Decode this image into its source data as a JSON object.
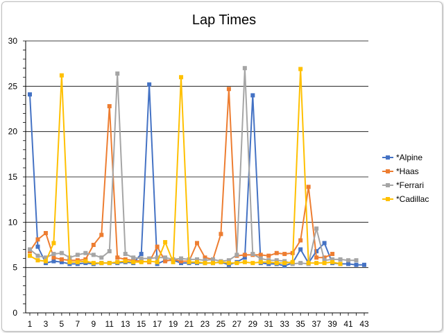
{
  "chart_data": {
    "type": "line",
    "title": "Lap Times",
    "xlabel": "",
    "ylabel": "",
    "ylim": [
      0,
      30
    ],
    "yticks": [
      0,
      5,
      10,
      15,
      20,
      25,
      30
    ],
    "xlim": [
      1,
      43
    ],
    "xticks": [
      1,
      3,
      5,
      7,
      9,
      11,
      13,
      15,
      17,
      19,
      21,
      23,
      25,
      27,
      29,
      31,
      33,
      35,
      37,
      39,
      41,
      43
    ],
    "grid": true,
    "legend": "right",
    "series": [
      {
        "name": "*Alpine",
        "color": "#4472c4",
        "marker": "diamond",
        "x": [
          1,
          2,
          3,
          4,
          5,
          6,
          7,
          8,
          9,
          10,
          11,
          12,
          13,
          14,
          15,
          16,
          17,
          18,
          19,
          20,
          21,
          22,
          23,
          24,
          25,
          26,
          27,
          28,
          29,
          30,
          31,
          32,
          33,
          34,
          35,
          36,
          37,
          38,
          39,
          40,
          41,
          42,
          43
        ],
        "values": [
          24.1,
          7.3,
          5.5,
          5.7,
          5.6,
          5.4,
          5.4,
          5.5,
          5.4,
          5.5,
          5.5,
          5.5,
          5.6,
          5.5,
          6.5,
          25.2,
          5.4,
          5.8,
          5.8,
          5.5,
          5.5,
          5.5,
          5.5,
          5.5,
          5.6,
          5.3,
          5.6,
          6.1,
          24.0,
          5.5,
          5.4,
          5.4,
          5.2,
          5.5,
          7.0,
          5.5,
          6.8,
          7.7,
          5.5,
          5.4,
          5.4,
          5.3,
          5.3
        ]
      },
      {
        "name": "*Haas",
        "color": "#ed7d31",
        "marker": "square",
        "x": [
          1,
          2,
          3,
          4,
          5,
          6,
          7,
          8,
          9,
          10,
          11,
          12,
          13,
          14,
          15,
          16,
          17,
          18,
          19,
          20,
          21,
          22,
          23,
          24,
          25,
          26,
          27,
          28,
          29,
          30,
          31,
          32,
          33,
          34,
          35,
          36,
          37,
          38,
          39
        ],
        "values": [
          6.8,
          8.1,
          8.8,
          6.1,
          5.9,
          5.8,
          5.8,
          5.9,
          7.5,
          8.6,
          22.8,
          6.1,
          5.9,
          5.8,
          5.7,
          5.6,
          7.3,
          5.7,
          5.9,
          5.7,
          5.7,
          7.7,
          6.1,
          5.9,
          8.7,
          24.7,
          6.3,
          6.4,
          6.4,
          6.4,
          6.3,
          6.6,
          6.5,
          6.6,
          8.0,
          13.9,
          6.1,
          6.1,
          6.5
        ]
      },
      {
        "name": "*Ferrari",
        "color": "#a5a5a5",
        "marker": "square",
        "x": [
          1,
          2,
          3,
          4,
          5,
          6,
          7,
          8,
          9,
          10,
          11,
          12,
          13,
          14,
          15,
          16,
          17,
          18,
          19,
          20,
          21,
          22,
          23,
          24,
          25,
          26,
          27,
          28,
          29,
          30,
          31,
          32,
          33,
          34,
          35,
          36,
          37,
          38,
          39,
          40,
          41,
          42
        ],
        "values": [
          7.0,
          6.3,
          6.1,
          6.5,
          6.6,
          6.1,
          6.4,
          6.6,
          6.4,
          6.1,
          6.8,
          26.4,
          6.5,
          6.1,
          6.0,
          6.0,
          6.1,
          6.1,
          5.9,
          6.0,
          5.9,
          5.9,
          5.8,
          5.9,
          5.7,
          5.8,
          6.4,
          27.0,
          6.5,
          6.0,
          5.8,
          5.8,
          5.7,
          5.4,
          5.5,
          5.4,
          9.3,
          5.8,
          5.9,
          5.9,
          5.8,
          5.8
        ]
      },
      {
        "name": "*Cadillac",
        "color": "#ffc000",
        "marker": "square",
        "x": [
          1,
          2,
          3,
          4,
          5,
          6,
          7,
          8,
          9,
          10,
          11,
          12,
          13,
          14,
          15,
          16,
          17,
          18,
          19,
          20,
          21,
          22,
          23,
          24,
          25,
          26,
          27,
          28,
          29,
          30,
          31,
          32,
          33,
          34,
          35,
          36,
          37,
          38,
          39,
          40
        ],
        "values": [
          6.3,
          5.8,
          5.7,
          7.7,
          26.2,
          5.6,
          5.6,
          5.7,
          5.5,
          5.5,
          5.5,
          5.6,
          5.7,
          5.6,
          5.6,
          5.7,
          5.6,
          7.8,
          5.6,
          26.0,
          5.6,
          5.6,
          5.5,
          5.5,
          5.6,
          5.5,
          5.5,
          5.6,
          5.5,
          5.6,
          5.6,
          5.5,
          5.5,
          5.6,
          26.9,
          5.5,
          5.5,
          5.5,
          5.6,
          5.4
        ]
      }
    ]
  }
}
